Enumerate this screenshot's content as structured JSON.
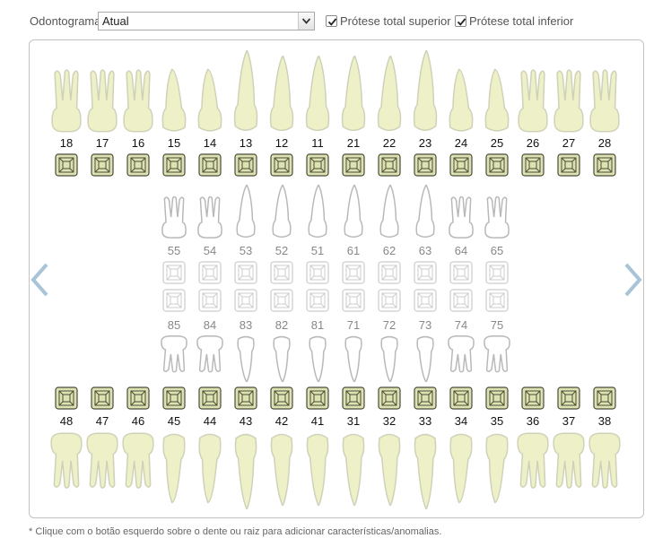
{
  "toolbar": {
    "odontograma_label": "Odontograma",
    "select_value": "Atual",
    "protese_superior_label": "Prótese total superior",
    "protese_superior_checked": true,
    "protese_inferior_label": "Prótese total inferior",
    "protese_inferior_checked": true
  },
  "permanent_upper": [
    "18",
    "17",
    "16",
    "15",
    "14",
    "13",
    "12",
    "11",
    "21",
    "22",
    "23",
    "24",
    "25",
    "26",
    "27",
    "28"
  ],
  "deciduous_upper": [
    "55",
    "54",
    "53",
    "52",
    "51",
    "61",
    "62",
    "63",
    "64",
    "65"
  ],
  "deciduous_lower": [
    "85",
    "84",
    "83",
    "82",
    "81",
    "71",
    "72",
    "73",
    "74",
    "75"
  ],
  "permanent_lower": [
    "48",
    "47",
    "46",
    "45",
    "44",
    "43",
    "42",
    "41",
    "31",
    "32",
    "33",
    "34",
    "35",
    "36",
    "37",
    "38"
  ],
  "nav": {
    "prev_icon": "chevron-left-icon",
    "next_icon": "chevron-right-icon"
  },
  "colors": {
    "tooth_fill": "#eef0c8",
    "tooth_stroke": "#cfd2b8",
    "box_fill": "#dde3b0",
    "box_stroke": "#4a4a3a",
    "dec_box_stroke": "#cccccc",
    "nav_arrow": "#a9c4d6"
  },
  "footnote": "* Clique com o botão esquerdo sobre o dente ou raiz para adicionar características/anomalias."
}
